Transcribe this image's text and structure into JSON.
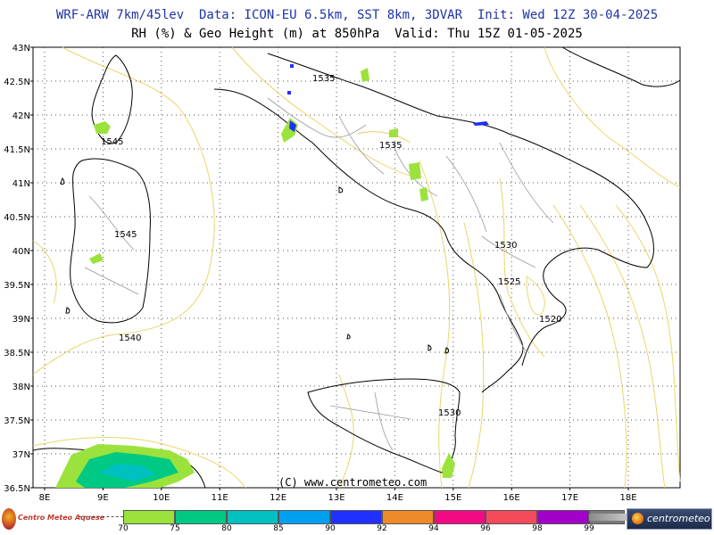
{
  "header": {
    "line1": "WRF-ARW 7km/45lev  Data: ICON-EU 6.5km, SST 8km, 3DVAR  Init: Wed 12Z 30-04-2025",
    "line2": "RH (%) & Geo Height (m) at 850hPa  Valid: Thu 15Z 01-05-2025"
  },
  "map": {
    "lat_labels": [
      "43N",
      "42.5N",
      "42N",
      "41.5N",
      "41N",
      "40.5N",
      "40N",
      "39.5N",
      "39N",
      "38.5N",
      "38N",
      "37.5N",
      "37N",
      "36.5N"
    ],
    "lon_labels": [
      "8E",
      "9E",
      "10E",
      "11E",
      "12E",
      "13E",
      "14E",
      "15E",
      "16E",
      "17E",
      "18E"
    ],
    "contour_labels": [
      {
        "text": "1535",
        "lon": 10.0,
        "lat": 0
      },
      {
        "text": "1535",
        "lon": 0,
        "lat": 0
      }
    ],
    "geo_labels": [
      "1535",
      "1545",
      "1535",
      "1545",
      "1530",
      "1525",
      "1520",
      "1540",
      "1530"
    ],
    "credit": "(C) www.centrometeo.com"
  },
  "legend": {
    "labels": [
      "70",
      "75",
      "80",
      "85",
      "90",
      "92",
      "94",
      "96",
      "98",
      "99"
    ],
    "colors": [
      "#9be23c",
      "#00c983",
      "#00c0c0",
      "#00a0f0",
      "#2030ff",
      "#ef8a28",
      "#f20a84",
      "#f54a5a",
      "#a000c8",
      "#7a7a7a"
    ],
    "left_logo": "Centro Meteo Aquese",
    "right_logo": "centrometeo"
  },
  "colors": {
    "contour": "#e8d76a",
    "coast": "#000000",
    "border": "#9a9a9a",
    "humid": "#9be23c",
    "humid2": "#00c983",
    "frame": "#000000"
  }
}
